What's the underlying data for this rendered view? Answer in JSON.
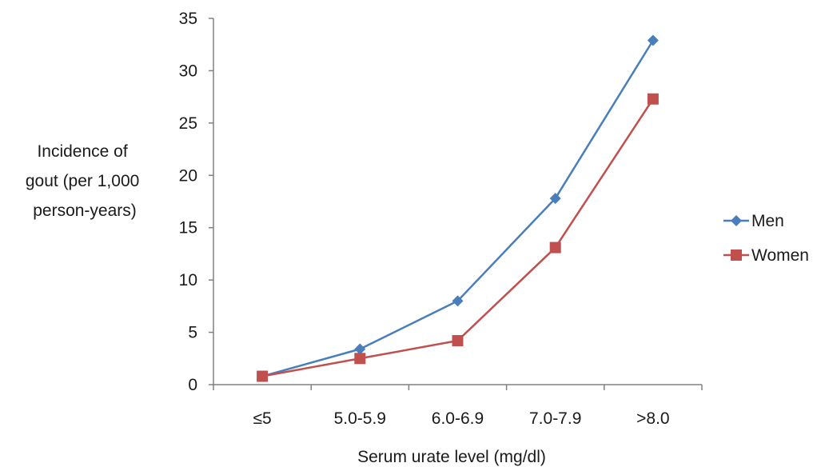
{
  "chart_data": {
    "type": "line",
    "categories": [
      "≤5",
      "5.0-5.9",
      "6.0-6.9",
      "7.0-7.9",
      ">8.0"
    ],
    "series": [
      {
        "name": "Men",
        "values": [
          0.8,
          3.4,
          8.0,
          17.8,
          32.9
        ],
        "color": "#4a7ebb",
        "marker": "diamond"
      },
      {
        "name": "Women",
        "values": [
          0.8,
          2.5,
          4.2,
          13.1,
          27.3
        ],
        "color": "#c0504d",
        "marker": "square"
      }
    ],
    "ylabel_lines": [
      "Incidence of",
      "gout (per 1,000",
      "person-years)"
    ],
    "xlabel": "Serum urate level (mg/dl)",
    "ylim": [
      0,
      35
    ],
    "yticks": [
      0,
      5,
      10,
      15,
      20,
      25,
      30,
      35
    ],
    "grid": false,
    "legend_position": "right"
  }
}
